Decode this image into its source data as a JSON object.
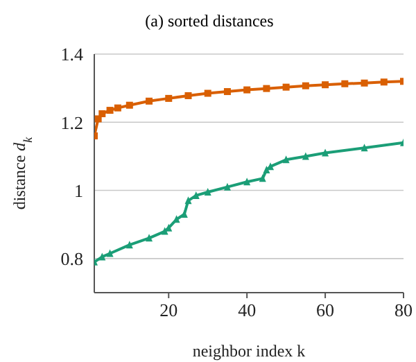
{
  "chart_data": {
    "type": "line",
    "title": "(a) sorted distances",
    "xlabel": "neighbor index k",
    "ylabel": "distance d$_{k}$",
    "xlim": [
      1,
      80
    ],
    "xticks": [
      20,
      40,
      60,
      80
    ],
    "ylim": [
      0.7,
      1.4
    ],
    "yticks": [
      0.8,
      1,
      1.2,
      1.4
    ],
    "grid": "y",
    "series": [
      {
        "color": "#d95f02",
        "marker": "square",
        "x": [
          1,
          2,
          3,
          5,
          7,
          10,
          15,
          20,
          25,
          30,
          35,
          40,
          45,
          50,
          55,
          60,
          65,
          70,
          75,
          80
        ],
        "values": [
          1.16,
          1.21,
          1.225,
          1.235,
          1.242,
          1.25,
          1.262,
          1.27,
          1.278,
          1.285,
          1.29,
          1.295,
          1.299,
          1.303,
          1.307,
          1.31,
          1.313,
          1.315,
          1.318,
          1.32
        ]
      },
      {
        "color": "#1b9e77",
        "marker": "triangle",
        "x": [
          1,
          3,
          5,
          10,
          15,
          19,
          20,
          22,
          24,
          25,
          27,
          30,
          35,
          40,
          44,
          45,
          46,
          50,
          55,
          60,
          70,
          80
        ],
        "values": [
          0.79,
          0.805,
          0.815,
          0.84,
          0.86,
          0.88,
          0.89,
          0.915,
          0.93,
          0.97,
          0.985,
          0.995,
          1.01,
          1.025,
          1.035,
          1.06,
          1.07,
          1.09,
          1.1,
          1.11,
          1.125,
          1.14
        ]
      }
    ]
  }
}
